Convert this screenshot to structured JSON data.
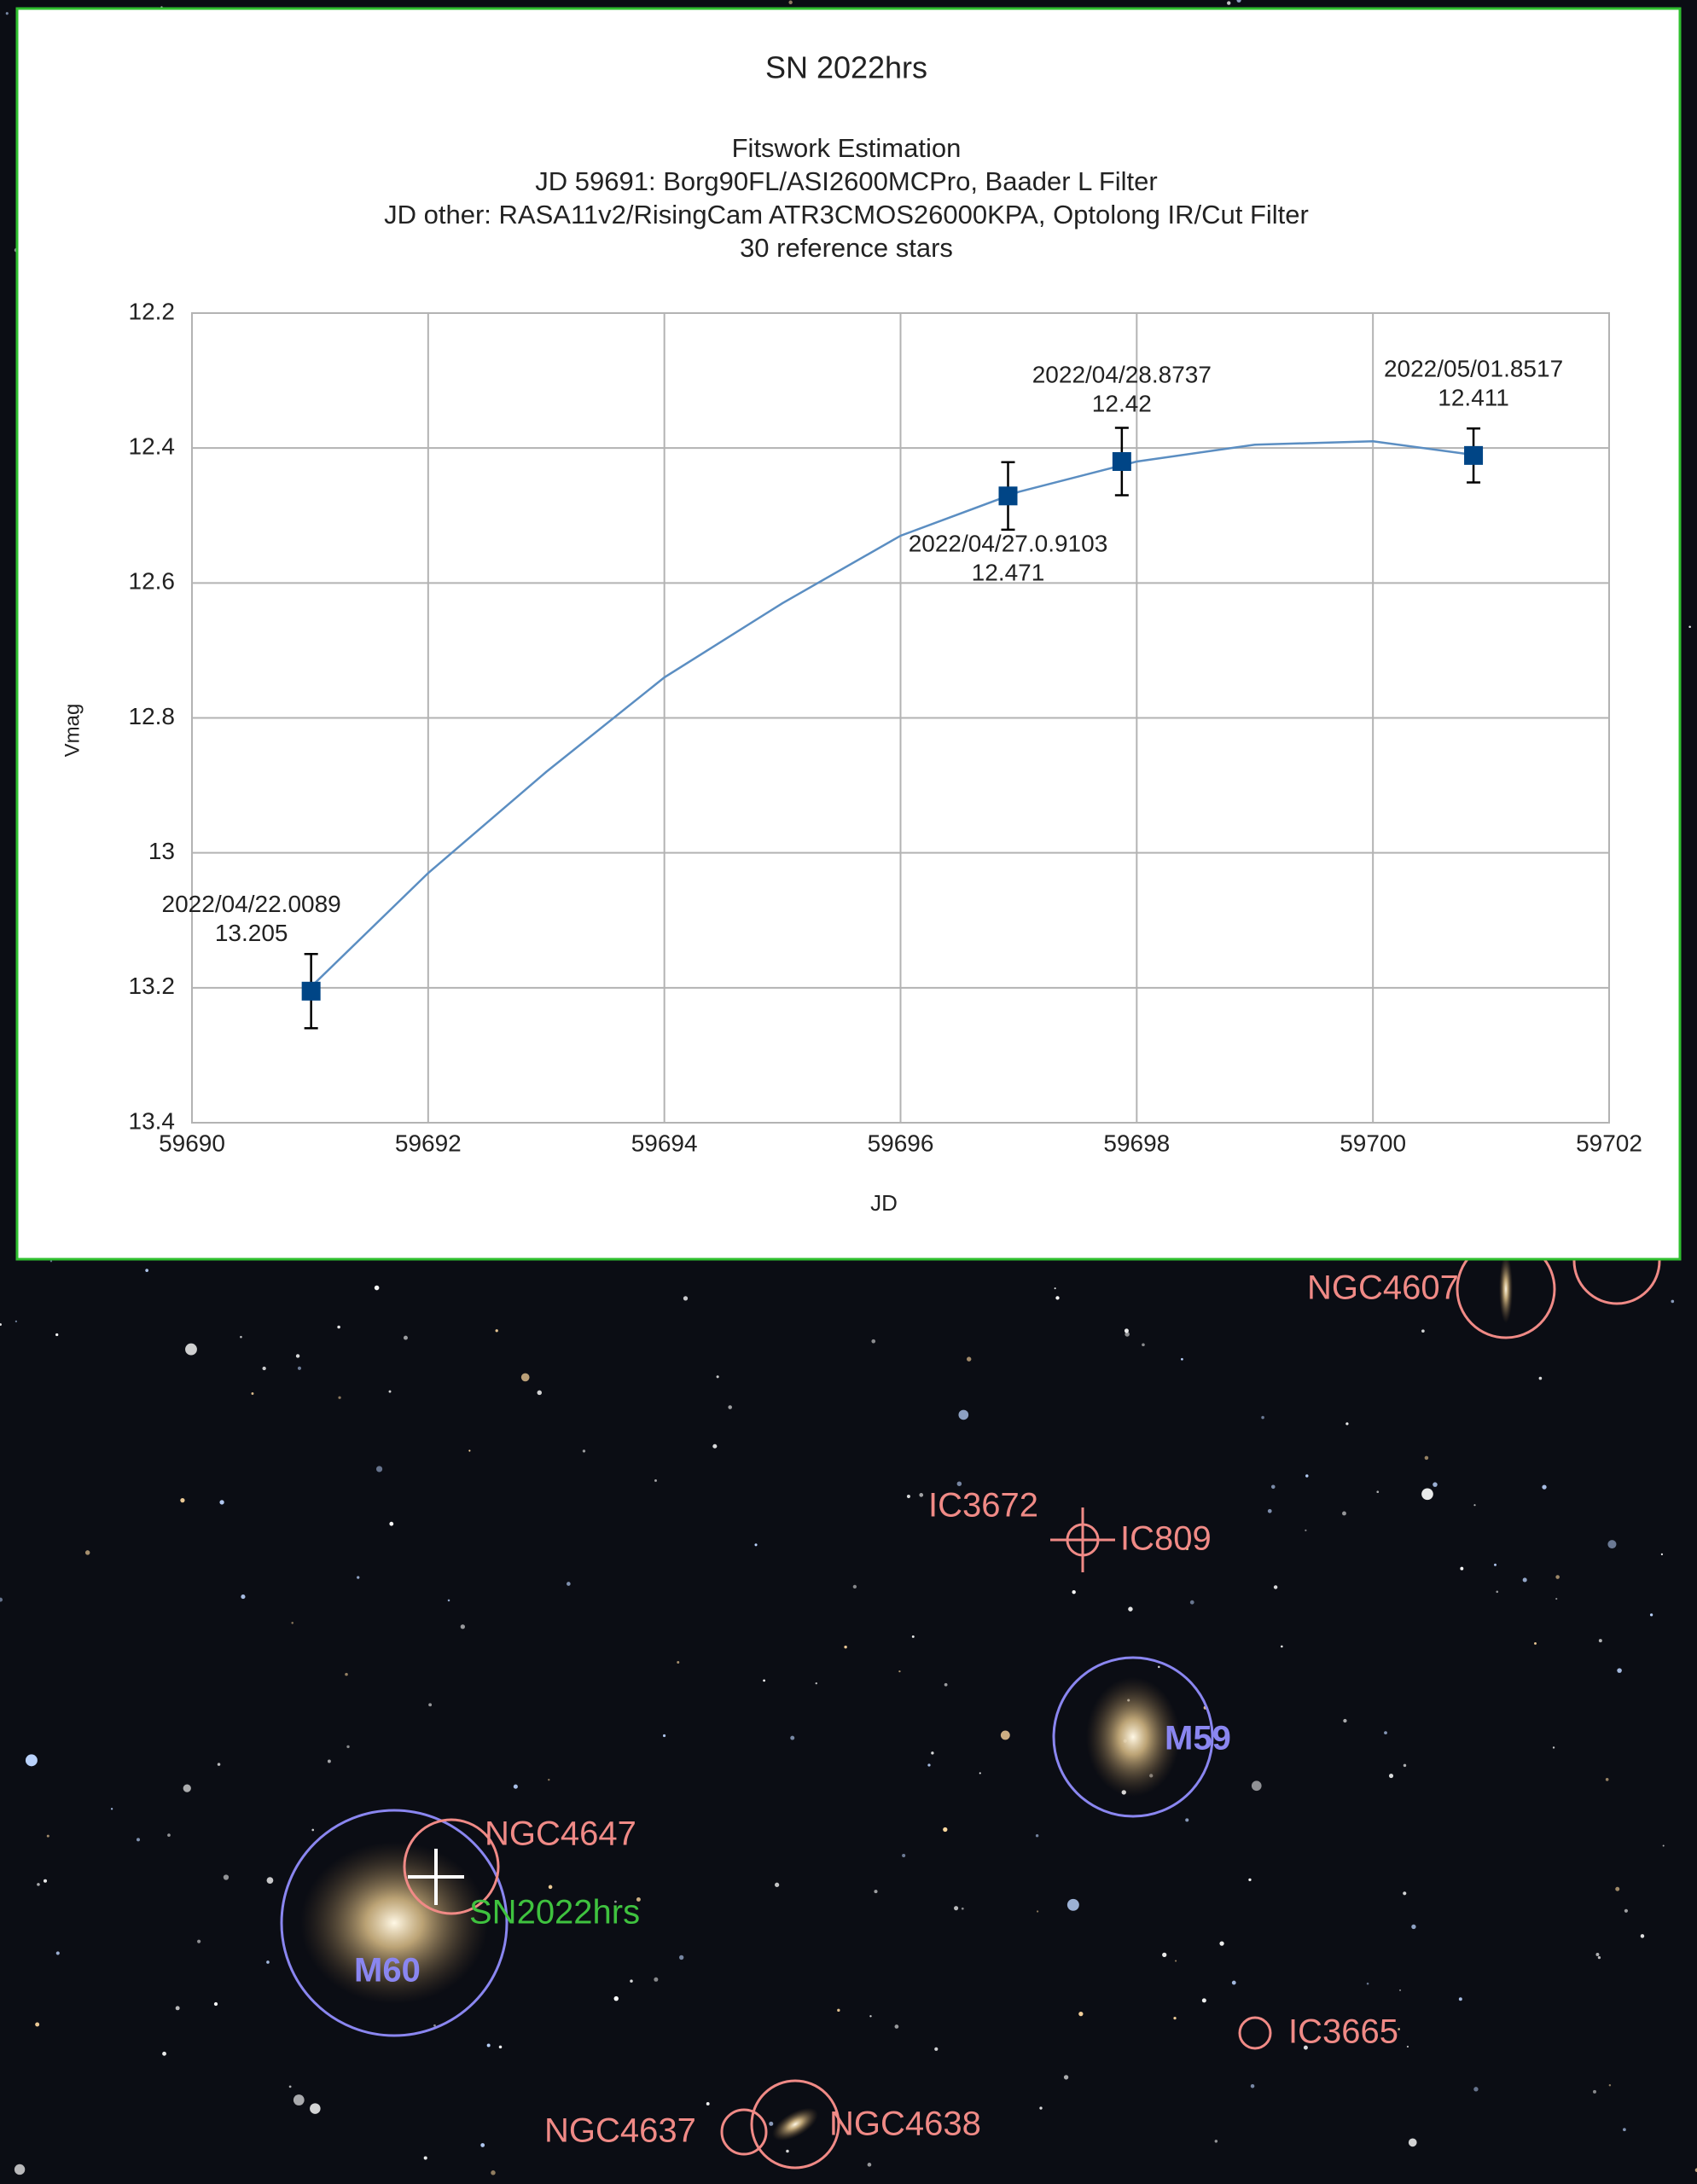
{
  "chart_data": {
    "type": "line",
    "title": "SN 2022hrs",
    "subtitle": [
      "Fitswork Estimation",
      "JD 59691: Borg90FL/ASI2600MCPro, Baader L Filter",
      "JD other: RASA11v2/RisingCam ATR3CMOS26000KPA, Optolong IR/Cut Filter",
      "30 reference stars"
    ],
    "x_label": "JD",
    "y_label": "Vmag",
    "x": [
      59691.0089,
      59696.9103,
      59697.8737,
      59700.8517
    ],
    "values": [
      13.205,
      12.471,
      12.42,
      12.411
    ],
    "errors": [
      0.055,
      0.05,
      0.05,
      0.04
    ],
    "point_labels": [
      "2022/04/22.0089",
      "2022/04/27.0.9103",
      "2022/04/28.8737",
      "2022/05/01.8517"
    ],
    "color": "#004586",
    "trend": {
      "color": "#5b8ec2",
      "x": [
        59691,
        59692,
        59693,
        59694,
        59695,
        59696,
        59697,
        59698,
        59699,
        59700,
        59700.85
      ],
      "values": [
        13.2,
        13.03,
        12.88,
        12.74,
        12.63,
        12.53,
        12.465,
        12.42,
        12.395,
        12.39,
        12.41
      ]
    },
    "xlim": [
      59690,
      59702
    ],
    "xticks": [
      59690,
      59692,
      59694,
      59696,
      59698,
      59700,
      59702
    ],
    "ylim": [
      12.2,
      13.4
    ],
    "yticks": [
      12.2,
      12.4,
      12.6,
      12.8,
      13,
      13.2,
      13.4
    ],
    "y_inverted": true,
    "grid": true
  },
  "sky_labels": {
    "ngc4607": "NGC4607",
    "ic3672": "IC3672",
    "ic809": "IC809",
    "m59": "M59",
    "ngc4647": "NGC4647",
    "sn": "SN2022hrs",
    "m60": "M60",
    "ic3665": "IC3665",
    "ngc4637": "NGC4637",
    "ngc4638": "NGC4638"
  }
}
